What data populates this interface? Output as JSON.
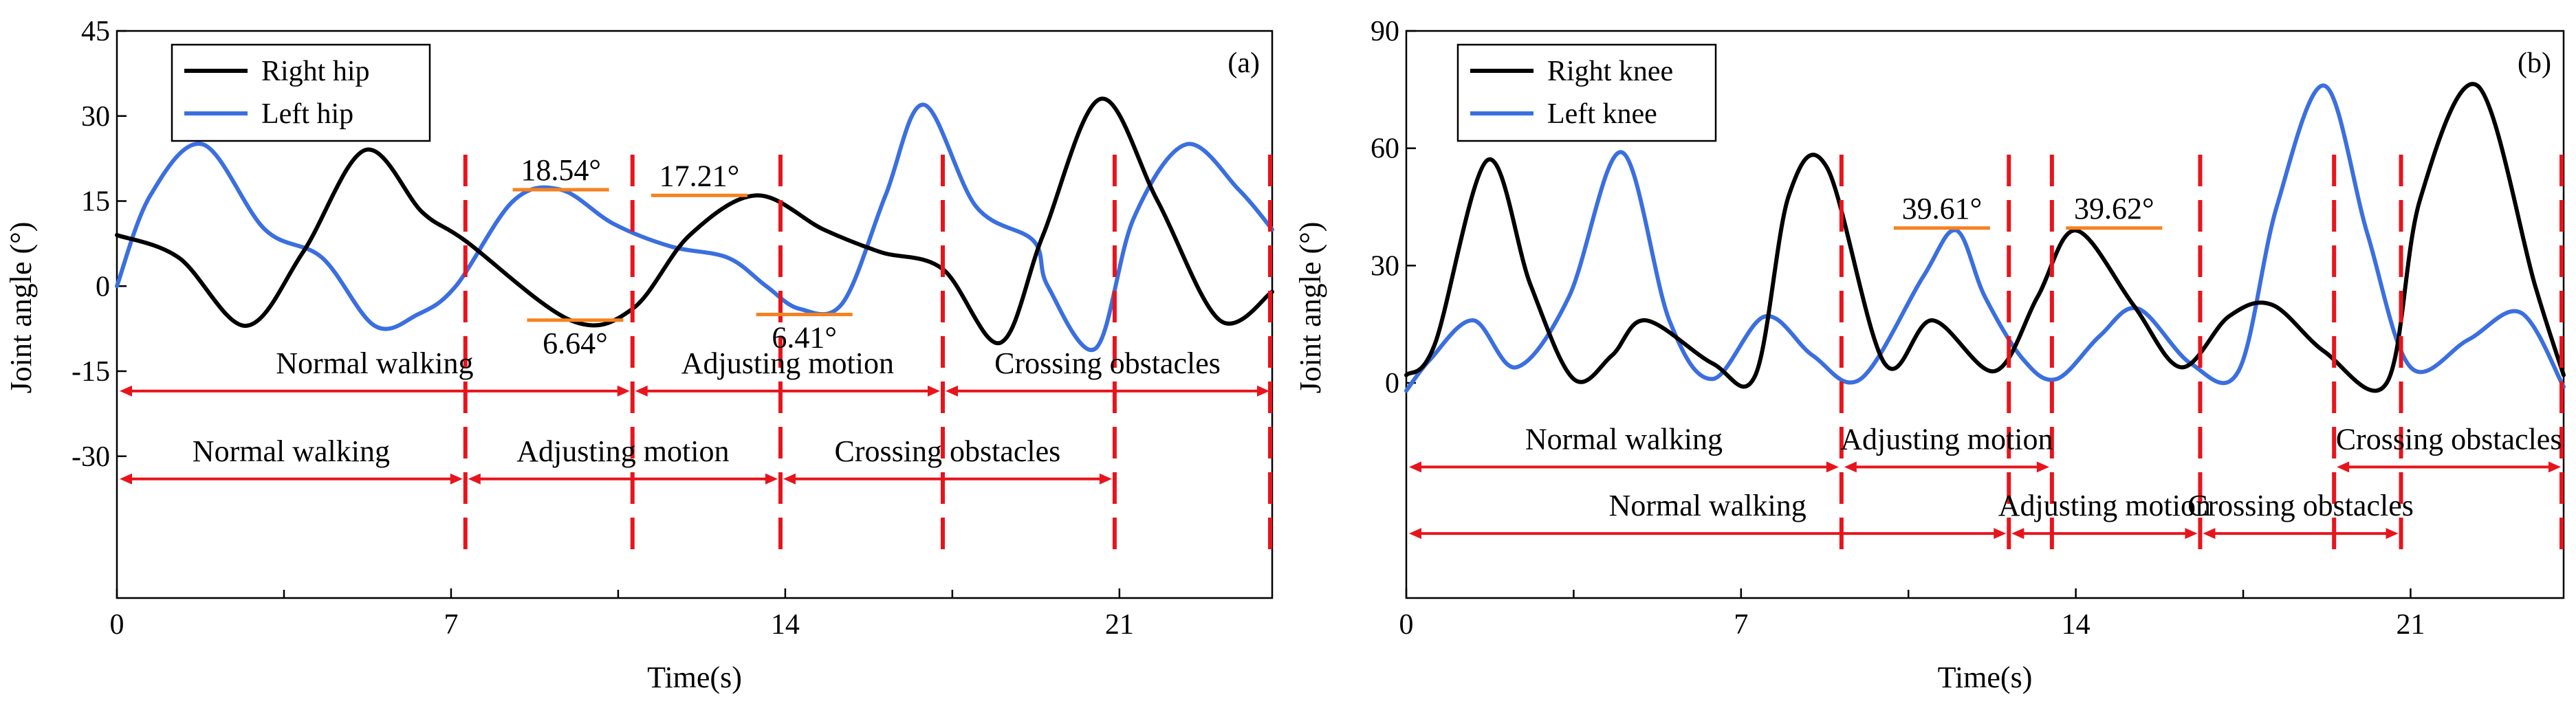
{
  "colors": {
    "black_series": "#000000",
    "blue_series": "#3b6fe0",
    "phase_red": "#e8141c",
    "highlight_orange": "#f5821f"
  },
  "chart_data": [
    {
      "type": "line",
      "panel_label": "(a)",
      "xlabel": "Time(s)",
      "ylabel": "Joint angle (°)",
      "xlim": [
        0,
        24.2
      ],
      "ylim": [
        -55,
        45
      ],
      "xticks": [
        0,
        7,
        14,
        21
      ],
      "yticks": [
        45,
        30,
        15,
        0,
        -15,
        -30
      ],
      "series": [
        {
          "name": "Right hip",
          "color": "#000000",
          "x": [
            0,
            1.3,
            2.7,
            3.9,
            5.2,
            6.4,
            7.3,
            9.5,
            10.8,
            12.0,
            13.4,
            14.8,
            16.0,
            17.3,
            18.5,
            19.4,
            20.6,
            21.8,
            23.1,
            24.2
          ],
          "y": [
            9,
            5,
            -7,
            6,
            24,
            13,
            8,
            -6,
            -4,
            9,
            16,
            10,
            6,
            3,
            -10,
            9,
            33,
            15,
            -6,
            -1
          ]
        },
        {
          "name": "Left hip",
          "color": "#3b6fe0",
          "x": [
            0,
            0.7,
            1.8,
            3.1,
            4.3,
            5.4,
            6.3,
            7.1,
            8.3,
            9.3,
            10.4,
            11.6,
            12.8,
            13.6,
            14.3,
            15.2,
            16.1,
            16.9,
            18.0,
            19.2,
            19.5,
            20.5,
            21.3,
            22.4,
            23.5,
            24.2
          ],
          "y": [
            0,
            16,
            25,
            10,
            5,
            -7,
            -5,
            0,
            15,
            17,
            11,
            7,
            5,
            0,
            -4,
            -3,
            16,
            32,
            14,
            8,
            0,
            -11,
            12,
            25,
            17,
            10
          ]
        }
      ],
      "legend": {
        "position": "top-left",
        "entries": [
          "Right hip",
          "Left hip"
        ]
      },
      "phase_lines": [
        7.3,
        10.8,
        13.9,
        17.3,
        20.9,
        24.2
      ],
      "highlights": [
        {
          "text": "18.54°",
          "x": 9.3,
          "y": 17,
          "text_position": "above"
        },
        {
          "text": "17.21°",
          "x": 12.2,
          "y": 16,
          "text_position": "above"
        },
        {
          "text": "6.64°",
          "x": 9.6,
          "y": -6,
          "text_position": "below"
        },
        {
          "text": "6.41°",
          "x": 14.4,
          "y": -5,
          "text_position": "below"
        }
      ],
      "phase_rows": [
        {
          "y": -18.5,
          "segments": [
            {
              "label": "Normal walking",
              "x0": 0,
              "x1": 10.8
            },
            {
              "label": "Adjusting motion",
              "x0": 10.8,
              "x1": 17.3
            },
            {
              "label": "Crossing obstacles",
              "x0": 17.3,
              "x1": 24.2
            }
          ]
        },
        {
          "y": -34,
          "segments": [
            {
              "label": "Normal walking",
              "x0": 0,
              "x1": 7.3
            },
            {
              "label": "Adjusting motion",
              "x0": 7.3,
              "x1": 13.9
            },
            {
              "label": "Crossing obstacles",
              "x0": 13.9,
              "x1": 20.9
            }
          ]
        }
      ]
    },
    {
      "type": "line",
      "panel_label": "(b)",
      "xlabel": "Time(s)",
      "ylabel": "Joint angle (°)",
      "xlim": [
        0,
        24.2
      ],
      "ylim": [
        -55,
        90
      ],
      "xticks": [
        0,
        7,
        14,
        21
      ],
      "yticks": [
        90,
        60,
        30,
        0
      ],
      "series": [
        {
          "name": "Right knee",
          "color": "#000000",
          "x": [
            0,
            0.6,
            1.7,
            2.6,
            3.5,
            4.3,
            5.0,
            6.4,
            7.3,
            8.0,
            8.8,
            10.0,
            11.0,
            12.3,
            13.2,
            14.0,
            15.2,
            16.2,
            17.2,
            18.1,
            19.2,
            20.5,
            21.2,
            22.4,
            23.6,
            24.2
          ],
          "y": [
            2,
            10,
            57,
            25,
            1,
            7,
            16,
            5,
            2,
            48,
            55,
            5,
            16,
            3,
            22,
            39,
            20,
            4,
            17,
            20,
            8,
            0,
            47,
            76,
            25,
            2
          ]
        },
        {
          "name": "Left knee",
          "color": "#3b6fe0",
          "x": [
            0,
            0.5,
            1.4,
            2.3,
            3.4,
            4.5,
            5.5,
            6.4,
            7.5,
            8.5,
            9.5,
            10.8,
            11.5,
            12.1,
            12.9,
            13.6,
            14.5,
            15.3,
            16.4,
            17.4,
            18.2,
            19.2,
            20.1,
            21.0,
            22.2,
            23.3,
            24.2
          ],
          "y": [
            -2,
            6,
            16,
            4,
            22,
            59,
            16,
            1,
            17,
            7,
            1,
            27,
            39,
            22,
            6,
            1,
            12,
            19,
            5,
            3,
            45,
            76,
            38,
            4,
            11,
            18,
            -1
          ]
        }
      ],
      "legend": {
        "position": "top-left",
        "entries": [
          "Right knee",
          "Left knee"
        ]
      },
      "phase_lines": [
        9.1,
        12.6,
        13.5,
        16.6,
        19.4,
        20.8,
        24.2
      ],
      "highlights": [
        {
          "text": "39.61°",
          "x": 11.2,
          "y": 39.6,
          "text_position": "above"
        },
        {
          "text": "39.62°",
          "x": 14.8,
          "y": 39.6,
          "text_position": "above"
        }
      ],
      "phase_rows": [
        {
          "y": -21.5,
          "segments": [
            {
              "label": "Normal walking",
              "x0": 0,
              "x1": 9.1
            },
            {
              "label": "Adjusting motion",
              "x0": 9.1,
              "x1": 13.5
            },
            {
              "label": "Crossing obstacles",
              "x0": 19.4,
              "x1": 24.2
            }
          ]
        },
        {
          "y": -38.5,
          "segments": [
            {
              "label": "Normal walking",
              "x0": 0,
              "x1": 12.6
            },
            {
              "label": "Adjusting motion",
              "x0": 12.6,
              "x1": 16.6
            },
            {
              "label": "Crossing obstacles",
              "x0": 16.6,
              "x1": 20.8
            }
          ]
        }
      ]
    }
  ]
}
